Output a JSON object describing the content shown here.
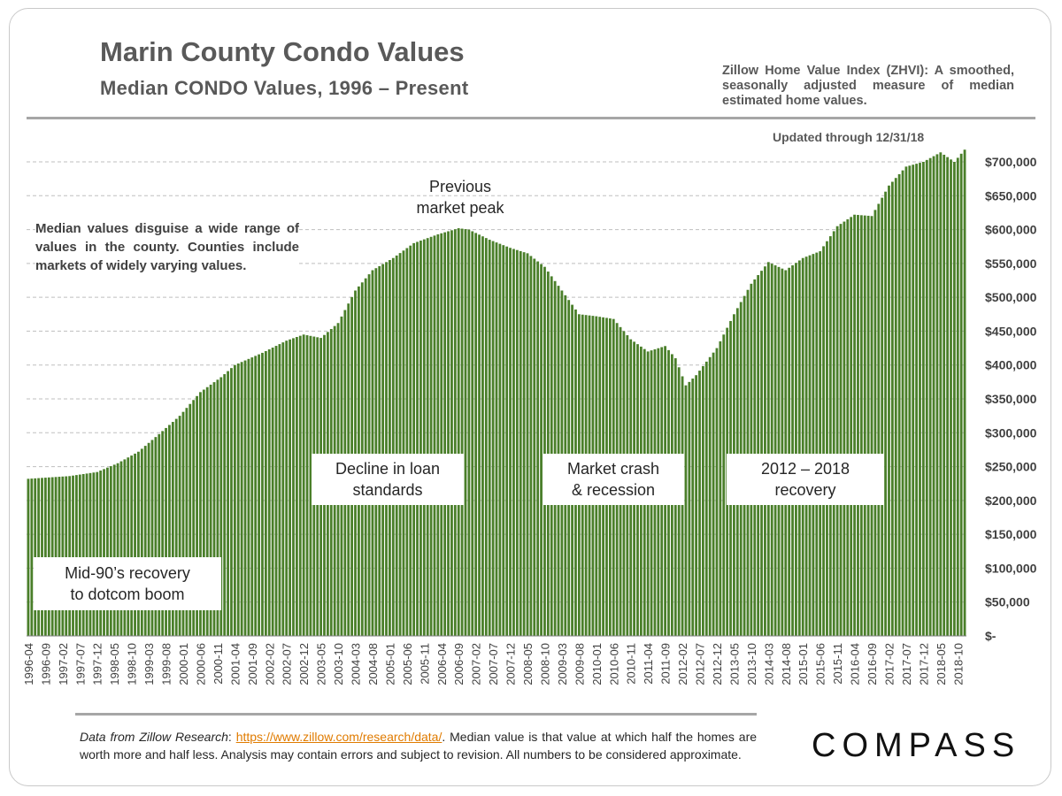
{
  "header": {
    "title": "Marin County Condo Values",
    "subtitle": "Median CONDO Values, 1996 – Present",
    "zhvi_note": "Zillow Home Value Index (ZHVI): A smoothed, seasonally adjusted measure of median estimated home values.",
    "updated": "Updated through 12/31/18"
  },
  "side_note": "Median values disguise a wide range of values in the county. Counties include markets of widely varying values.",
  "footer": {
    "prefix": "Data from Zillow Research",
    "link": "https://www.zillow.com/research/data/",
    "rest": ". Median value is that value at which half the homes are worth more and half less. Analysis may contain errors and subject to revision. All numbers to be considered approximate.",
    "logo": "COMPASS"
  },
  "colors": {
    "bar": "#4a7f2a",
    "grid": "#bfbfbf",
    "text": "#404040"
  },
  "chart_data": {
    "type": "bar",
    "title": "Marin County Condo Values",
    "subtitle": "Median CONDO Values, 1996 – Present",
    "x_start": "1996-04",
    "x_end": "2018-12",
    "frequency": "monthly",
    "x_tick_labels": [
      "1996-04",
      "1996-09",
      "1997-02",
      "1997-07",
      "1997-12",
      "1998-05",
      "1998-10",
      "1999-03",
      "1999-08",
      "2000-01",
      "2000-06",
      "2000-11",
      "2001-04",
      "2001-09",
      "2002-02",
      "2002-07",
      "2002-12",
      "2003-05",
      "2003-10",
      "2004-03",
      "2004-08",
      "2005-01",
      "2005-06",
      "2005-11",
      "2006-04",
      "2006-09",
      "2007-02",
      "2007-07",
      "2007-12",
      "2008-05",
      "2008-10",
      "2009-03",
      "2009-08",
      "2010-01",
      "2010-06",
      "2010-11",
      "2011-04",
      "2011-09",
      "2012-02",
      "2012-07",
      "2012-12",
      "2013-05",
      "2013-10",
      "2014-03",
      "2014-08",
      "2015-01",
      "2015-06",
      "2015-11",
      "2016-04",
      "2016-09",
      "2017-02",
      "2017-07",
      "2017-12",
      "2018-05",
      "2018-10"
    ],
    "y_tick_labels": [
      "$-",
      "$50,000",
      "$100,000",
      "$150,000",
      "$200,000",
      "$250,000",
      "$300,000",
      "$350,000",
      "$400,000",
      "$450,000",
      "$500,000",
      "$550,000",
      "$600,000",
      "$650,000",
      "$700,000"
    ],
    "ylim": [
      0,
      720000
    ],
    "grid": true,
    "anchors": [
      [
        "1996-04",
        232000
      ],
      [
        "1997-04",
        236000
      ],
      [
        "1997-12",
        242000
      ],
      [
        "1998-06",
        255000
      ],
      [
        "1998-12",
        272000
      ],
      [
        "1999-06",
        298000
      ],
      [
        "1999-12",
        325000
      ],
      [
        "2000-06",
        360000
      ],
      [
        "2000-12",
        382000
      ],
      [
        "2001-04",
        400000
      ],
      [
        "2001-12",
        418000
      ],
      [
        "2002-07",
        436000
      ],
      [
        "2002-12",
        445000
      ],
      [
        "2003-05",
        440000
      ],
      [
        "2003-10",
        462000
      ],
      [
        "2004-03",
        510000
      ],
      [
        "2004-08",
        540000
      ],
      [
        "2005-02",
        558000
      ],
      [
        "2005-08",
        580000
      ],
      [
        "2006-03",
        593000
      ],
      [
        "2006-09",
        602000
      ],
      [
        "2006-12",
        600000
      ],
      [
        "2007-06",
        585000
      ],
      [
        "2007-12",
        573000
      ],
      [
        "2008-05",
        565000
      ],
      [
        "2008-10",
        545000
      ],
      [
        "2009-03",
        510000
      ],
      [
        "2009-08",
        475000
      ],
      [
        "2010-01",
        472000
      ],
      [
        "2010-06",
        468000
      ],
      [
        "2010-11",
        438000
      ],
      [
        "2011-04",
        420000
      ],
      [
        "2011-09",
        428000
      ],
      [
        "2011-12",
        410000
      ],
      [
        "2012-03",
        370000
      ],
      [
        "2012-06",
        385000
      ],
      [
        "2012-12",
        425000
      ],
      [
        "2013-05",
        475000
      ],
      [
        "2013-10",
        520000
      ],
      [
        "2014-03",
        552000
      ],
      [
        "2014-08",
        540000
      ],
      [
        "2015-01",
        558000
      ],
      [
        "2015-06",
        568000
      ],
      [
        "2015-11",
        605000
      ],
      [
        "2016-04",
        622000
      ],
      [
        "2016-09",
        620000
      ],
      [
        "2017-02",
        665000
      ],
      [
        "2017-07",
        693000
      ],
      [
        "2017-12",
        700000
      ],
      [
        "2018-05",
        714000
      ],
      [
        "2018-09",
        700000
      ],
      [
        "2018-12",
        718000
      ]
    ],
    "annotations": [
      {
        "text": "Mid-90’s recovery\nto dotcom boom"
      },
      {
        "text": "Decline in loan\nstandards"
      },
      {
        "text": "Previous\nmarket peak"
      },
      {
        "text": "Market crash\n& recession"
      },
      {
        "text": "2012 – 2018\nrecovery"
      }
    ]
  }
}
